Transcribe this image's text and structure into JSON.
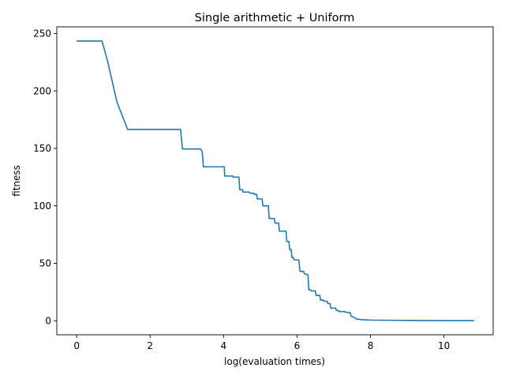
{
  "chart_data": {
    "type": "line",
    "title": "Single arithmetic + Uniform",
    "xlabel": "log(evaluation times)",
    "ylabel": "fitness",
    "xlim": [
      -0.54,
      11.34
    ],
    "ylim": [
      -12.2,
      255.8
    ],
    "xticks": [
      0,
      2,
      4,
      6,
      8,
      10
    ],
    "yticks": [
      0,
      50,
      100,
      150,
      200,
      250
    ],
    "grid": false,
    "legend": "none",
    "series": [
      {
        "color": "#1f77b4",
        "points": [
          [
            0.0,
            243.5
          ],
          [
            0.69,
            243.5
          ],
          [
            0.85,
            225
          ],
          [
            1.1,
            190
          ],
          [
            1.39,
            166.5
          ],
          [
            2.83,
            166.5
          ],
          [
            2.88,
            149.5
          ],
          [
            3.38,
            149.5
          ],
          [
            3.42,
            147
          ],
          [
            3.45,
            134
          ],
          [
            4.02,
            134
          ],
          [
            4.03,
            126
          ],
          [
            4.25,
            126
          ],
          [
            4.26,
            125
          ],
          [
            4.42,
            125
          ],
          [
            4.44,
            114
          ],
          [
            4.52,
            114
          ],
          [
            4.53,
            112
          ],
          [
            4.7,
            112
          ],
          [
            4.72,
            111
          ],
          [
            4.82,
            111
          ],
          [
            4.84,
            110
          ],
          [
            4.9,
            110
          ],
          [
            4.92,
            106
          ],
          [
            5.05,
            106
          ],
          [
            5.07,
            100
          ],
          [
            5.22,
            100
          ],
          [
            5.24,
            89
          ],
          [
            5.38,
            89
          ],
          [
            5.4,
            85
          ],
          [
            5.5,
            85
          ],
          [
            5.52,
            78
          ],
          [
            5.7,
            78
          ],
          [
            5.72,
            69
          ],
          [
            5.78,
            69
          ],
          [
            5.8,
            62
          ],
          [
            5.84,
            62
          ],
          [
            5.86,
            55
          ],
          [
            5.9,
            55
          ],
          [
            5.92,
            53
          ],
          [
            6.05,
            53
          ],
          [
            6.08,
            43
          ],
          [
            6.18,
            43
          ],
          [
            6.2,
            41
          ],
          [
            6.3,
            40
          ],
          [
            6.32,
            27
          ],
          [
            6.36,
            27
          ],
          [
            6.38,
            26
          ],
          [
            6.5,
            26
          ],
          [
            6.52,
            22
          ],
          [
            6.62,
            22
          ],
          [
            6.64,
            18
          ],
          [
            6.72,
            18
          ],
          [
            6.74,
            17
          ],
          [
            6.82,
            17
          ],
          [
            6.84,
            15
          ],
          [
            6.9,
            15
          ],
          [
            6.92,
            11
          ],
          [
            7.05,
            11
          ],
          [
            7.07,
            9
          ],
          [
            7.12,
            9
          ],
          [
            7.14,
            8
          ],
          [
            7.3,
            8
          ],
          [
            7.32,
            7.5
          ],
          [
            7.45,
            7
          ],
          [
            7.47,
            4
          ],
          [
            7.55,
            3
          ],
          [
            7.62,
            1.5
          ],
          [
            7.75,
            1
          ],
          [
            8.0,
            0.6
          ],
          [
            9.0,
            0.3
          ],
          [
            10.0,
            0.15
          ],
          [
            10.82,
            0.1
          ]
        ]
      }
    ]
  }
}
